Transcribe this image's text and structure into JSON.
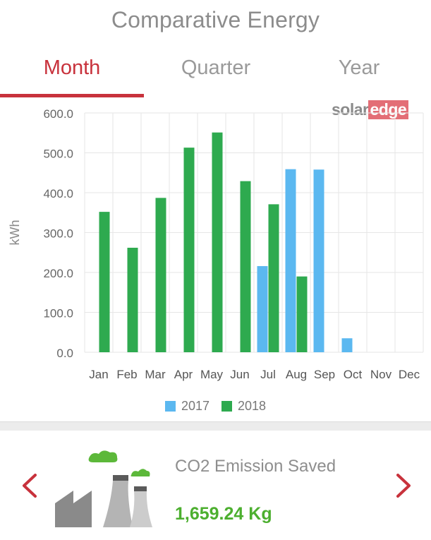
{
  "header": {
    "title": "Comparative Energy"
  },
  "tabs": [
    {
      "label": "Month",
      "active": true
    },
    {
      "label": "Quarter",
      "active": false
    },
    {
      "label": "Year",
      "active": false
    }
  ],
  "brand": {
    "part1": "solar",
    "part2": "edge"
  },
  "colors": {
    "accent": "#c8323c",
    "series2017": "#5bb8f0",
    "series2018": "#2eaa4f",
    "co2_value": "#4caf2f"
  },
  "chart_data": {
    "type": "bar",
    "categories": [
      "Jan",
      "Feb",
      "Mar",
      "Apr",
      "May",
      "Jun",
      "Jul",
      "Aug",
      "Sep",
      "Oct",
      "Nov",
      "Dec"
    ],
    "series": [
      {
        "name": "2017",
        "values": [
          null,
          null,
          null,
          null,
          null,
          null,
          216,
          459,
          458,
          35,
          null,
          null
        ]
      },
      {
        "name": "2018",
        "values": [
          352,
          262,
          387,
          513,
          551,
          429,
          371,
          190,
          null,
          null,
          null,
          null
        ]
      }
    ],
    "ylabel": "kWh",
    "yticks": [
      "0.0",
      "100.0",
      "200.0",
      "300.0",
      "400.0",
      "500.0",
      "600.0"
    ],
    "ylim": [
      0,
      600
    ],
    "grid": true,
    "legend_position": "bottom-center"
  },
  "co2": {
    "label": "CO2 Emission Saved",
    "value": "1,659.24 Kg"
  },
  "icons": {
    "prev": "chevron-left-icon",
    "next": "chevron-right-icon",
    "factory": "factory-icon"
  }
}
